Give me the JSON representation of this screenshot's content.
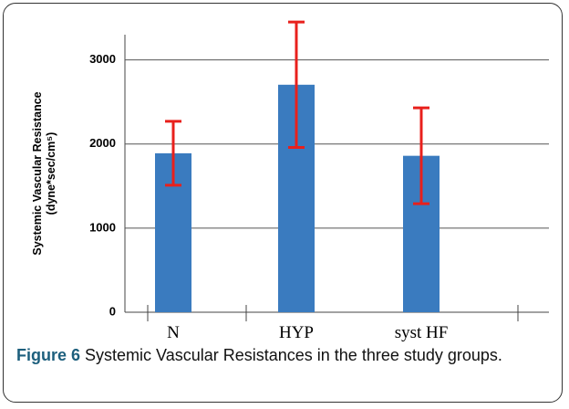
{
  "chart_data": {
    "type": "bar",
    "ylabel": [
      "Systemic Vascular Resistance",
      "(dyne*sec/cm⁵)"
    ],
    "categories": [
      "N",
      "HYP",
      "syst HF"
    ],
    "values": [
      1890,
      2705,
      1860
    ],
    "errors": [
      380,
      745,
      570
    ],
    "color": "#3a7bbf",
    "error_color": "#e8201c",
    "ylim": [
      0,
      3300
    ],
    "yticks": [
      0,
      1000,
      2000,
      3000
    ],
    "grid": true
  },
  "caption": {
    "label": "Figure 6",
    "text": "Systemic Vascular Resistances in the three study groups."
  }
}
